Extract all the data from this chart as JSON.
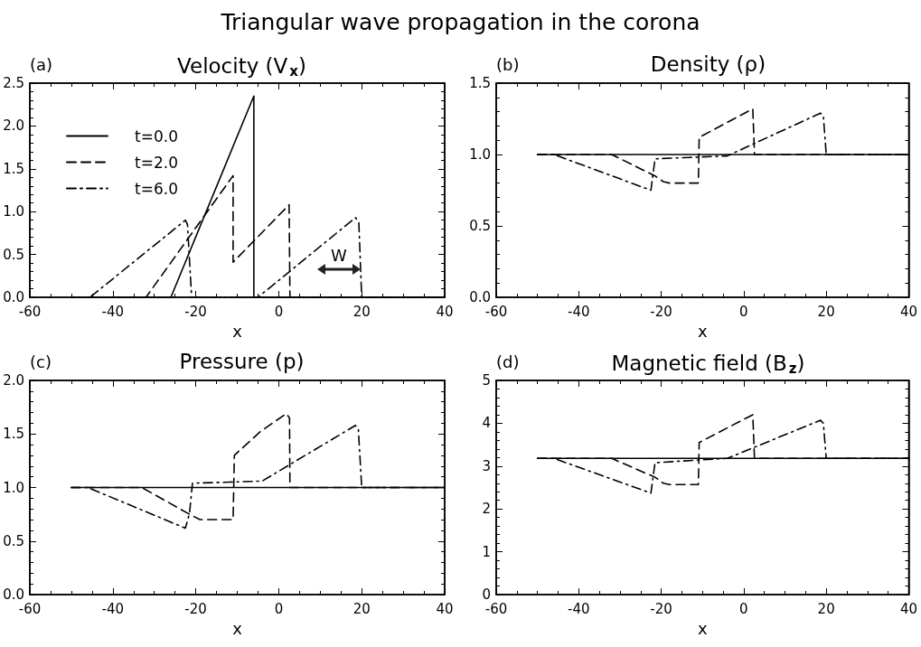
{
  "chart_data": [
    {
      "type": "other",
      "title": "Triangular wave propagation in the corona"
    },
    {
      "type": "line",
      "title": "Velocity (V$_{x}$)",
      "annotations": [
        "(a)",
        "W"
      ],
      "xlabel": "x",
      "xlim": [
        -60,
        40
      ],
      "xticks": [
        -60,
        -40,
        -20,
        0,
        20,
        40
      ],
      "ylim": [
        0,
        2.5
      ],
      "yticks": [
        {
          "value": 0,
          "label": "0.0"
        },
        {
          "value": 0.5,
          "label": "0.5"
        },
        {
          "value": 1,
          "label": "1.0"
        },
        {
          "value": 1.5,
          "label": "1.5"
        },
        {
          "value": 2,
          "label": "2.0"
        },
        {
          "value": 2.5,
          "label": "2.5"
        }
      ],
      "legend": "top left",
      "marker": "none",
      "series": [
        {
          "name": "t=0.0",
          "color": "#000000",
          "line_style": "solid",
          "x": [
            -50,
            -26,
            -6,
            -6,
            40
          ],
          "values": [
            0,
            0,
            2.35,
            0,
            0
          ]
        },
        {
          "name": "t=2.0",
          "color": "#000000",
          "line_style": "dashed",
          "x": [
            -50,
            -32,
            -11,
            -11,
            2.5,
            2.7,
            40
          ],
          "values": [
            0,
            0,
            1.42,
            0.41,
            1.08,
            0,
            0
          ]
        },
        {
          "name": "t=6.0",
          "color": "#000000",
          "line_style": "dashdot",
          "x": [
            -50,
            -45.5,
            -22.5,
            -22,
            -21,
            -5,
            18.5,
            19.3,
            20,
            40
          ],
          "values": [
            0,
            0,
            0.9,
            0.85,
            0,
            0,
            0.93,
            0.88,
            0,
            0
          ]
        }
      ]
    },
    {
      "type": "line",
      "title": "Density (ρ)",
      "annotations": [
        "(b)"
      ],
      "xlabel": "x",
      "xlim": [
        -60,
        40
      ],
      "xticks": [
        -60,
        -40,
        -20,
        0,
        20,
        40
      ],
      "ylim": [
        0,
        1.5
      ],
      "yticks": [
        {
          "value": 0,
          "label": "0.0"
        },
        {
          "value": 0.5,
          "label": "0.5"
        },
        {
          "value": 1,
          "label": "1.0"
        },
        {
          "value": 1.5,
          "label": "1.5"
        }
      ],
      "marker": "none",
      "series": [
        {
          "color": "#000000",
          "line_style": "solid",
          "x": [
            -50,
            40
          ],
          "values": [
            1,
            1
          ]
        },
        {
          "color": "#000000",
          "line_style": "dashed",
          "x": [
            -50,
            -32,
            -21.5,
            -19.5,
            -18,
            -11,
            -10.8,
            2.2,
            2.6,
            40
          ],
          "values": [
            1,
            1,
            0.85,
            0.81,
            0.8,
            0.8,
            1.12,
            1.32,
            1,
            1
          ]
        },
        {
          "color": "#000000",
          "line_style": "dashdot",
          "x": [
            -50,
            -46,
            -22.5,
            -21.5,
            -4,
            18.6,
            19.3,
            20,
            40
          ],
          "values": [
            1,
            1,
            0.75,
            0.97,
            0.99,
            1.29,
            1.27,
            1,
            1
          ]
        }
      ]
    },
    {
      "type": "line",
      "title": "Pressure (p)",
      "annotations": [
        "(c)"
      ],
      "xlabel": "x",
      "xlim": [
        -60,
        40
      ],
      "xticks": [
        -60,
        -40,
        -20,
        0,
        20,
        40
      ],
      "ylim": [
        0,
        2
      ],
      "yticks": [
        {
          "value": 0,
          "label": "0.0"
        },
        {
          "value": 0.5,
          "label": "0.5"
        },
        {
          "value": 1,
          "label": "1.0"
        },
        {
          "value": 1.5,
          "label": "1.5"
        },
        {
          "value": 2,
          "label": "2.0"
        }
      ],
      "marker": "none",
      "series": [
        {
          "color": "#000000",
          "line_style": "solid",
          "x": [
            -50,
            40
          ],
          "values": [
            1,
            1
          ]
        },
        {
          "color": "#000000",
          "line_style": "dashed",
          "x": [
            -50,
            -33,
            -21.5,
            -19,
            -11,
            -10.7,
            -4.5,
            1.8,
            2.6,
            2.7,
            40
          ],
          "values": [
            1,
            1,
            0.75,
            0.7,
            0.7,
            1.3,
            1.52,
            1.69,
            1.65,
            1,
            1
          ]
        },
        {
          "color": "#000000",
          "line_style": "dashdot",
          "x": [
            -50,
            -46,
            -22.5,
            -21.5,
            -20.8,
            -4,
            18.5,
            19.2,
            20,
            40
          ],
          "values": [
            1,
            1,
            0.62,
            0.76,
            1.04,
            1.06,
            1.58,
            1.54,
            1,
            1
          ]
        }
      ]
    },
    {
      "type": "line",
      "title": "Magnetic field (B$_{z}$)",
      "annotations": [
        "(d)"
      ],
      "xlabel": "x",
      "xlim": [
        -60,
        40
      ],
      "xticks": [
        -60,
        -40,
        -20,
        0,
        20,
        40
      ],
      "ylim": [
        0,
        5
      ],
      "yticks": [
        0,
        1,
        2,
        3,
        4,
        5
      ],
      "marker": "none",
      "series": [
        {
          "color": "#000000",
          "line_style": "solid",
          "x": [
            -50,
            40
          ],
          "values": [
            3.18,
            3.18
          ]
        },
        {
          "color": "#000000",
          "line_style": "dashed",
          "x": [
            -50,
            -32,
            -21.5,
            -19.5,
            -18,
            -11,
            -10.8,
            2.2,
            2.6,
            40
          ],
          "values": [
            3.18,
            3.18,
            2.74,
            2.6,
            2.57,
            2.57,
            3.55,
            4.2,
            3.18,
            3.18
          ]
        },
        {
          "color": "#000000",
          "line_style": "dashdot",
          "x": [
            -50,
            -46,
            -22.5,
            -21.5,
            -4,
            18.6,
            19.3,
            20,
            40
          ],
          "values": [
            3.18,
            3.18,
            2.37,
            3.08,
            3.18,
            4.07,
            4,
            3.18,
            3.18
          ]
        }
      ]
    }
  ]
}
